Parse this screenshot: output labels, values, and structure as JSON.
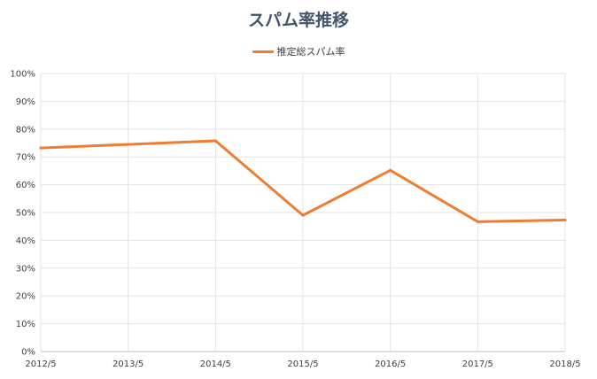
{
  "chart_data": {
    "type": "line",
    "title": "スパム率推移",
    "categories": [
      "2012/5",
      "2013/5",
      "2014/5",
      "2015/5",
      "2016/5",
      "2017/5",
      "2018/5"
    ],
    "series": [
      {
        "name": "推定総スパム率",
        "color": "#ED7D31",
        "x": [
          "2012/5",
          "2013/5",
          "2014/5",
          "2015/5",
          "2016/5",
          "2017/5",
          "2018/5"
        ],
        "values": [
          73.2,
          74.5,
          75.8,
          49.0,
          65.2,
          46.7,
          47.3
        ]
      }
    ],
    "y_ticks": [
      "0%",
      "10%",
      "20%",
      "30%",
      "40%",
      "50%",
      "60%",
      "70%",
      "80%",
      "90%",
      "100%"
    ],
    "ylim": [
      0,
      100
    ],
    "xlabel": "",
    "ylabel": "",
    "grid": true,
    "legend_position": "top"
  }
}
